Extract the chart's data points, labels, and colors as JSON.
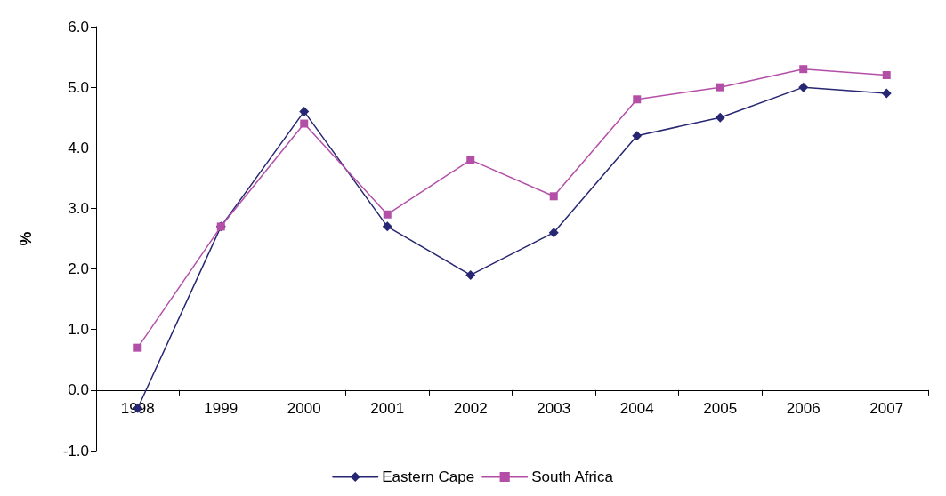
{
  "chart_data": {
    "type": "line",
    "ylabel": "%",
    "categories": [
      "1998",
      "1999",
      "2000",
      "2001",
      "2002",
      "2003",
      "2004",
      "2005",
      "2006",
      "2007"
    ],
    "series": [
      {
        "name": "Eastern Cape",
        "color": "#262673",
        "marker": "diamond",
        "values": [
          -0.3,
          2.7,
          4.6,
          2.7,
          1.9,
          2.6,
          4.2,
          4.5,
          5.0,
          4.9
        ]
      },
      {
        "name": "South Africa",
        "color": "#b44fa8",
        "marker": "square",
        "values": [
          0.7,
          2.7,
          4.4,
          2.9,
          3.8,
          3.2,
          4.8,
          5.0,
          5.3,
          5.2
        ]
      }
    ],
    "ylim": [
      -1,
      6
    ],
    "yticks": [
      {
        "value": -1,
        "label": "-1.0"
      },
      {
        "value": 0,
        "label": "0.0"
      },
      {
        "value": 1,
        "label": "1.0"
      },
      {
        "value": 2,
        "label": "2.0"
      },
      {
        "value": 3,
        "label": "3.0"
      },
      {
        "value": 4,
        "label": "4.0"
      },
      {
        "value": 5,
        "label": "5.0"
      },
      {
        "value": 6,
        "label": "6.0"
      }
    ],
    "legend": "bottom",
    "line_style": "solid"
  }
}
